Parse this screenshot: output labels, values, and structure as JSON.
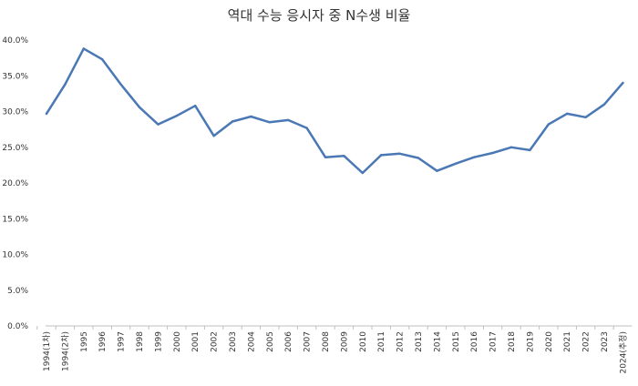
{
  "chart_data": {
    "type": "line",
    "title": "역대 수능 응시자 중 N수생 비율",
    "xlabel": "",
    "ylabel": "",
    "ylim": [
      0,
      40
    ],
    "ytick_labels": [
      "0.0%",
      "5.0%",
      "10.0%",
      "15.0%",
      "20.0%",
      "25.0%",
      "30.0%",
      "35.0%",
      "40.0%"
    ],
    "grid": false,
    "line_color": "#4a78b5",
    "categories": [
      "1994(1차)",
      "1994(2차)",
      "1995",
      "1996",
      "1997",
      "1998",
      "1999",
      "2000",
      "2001",
      "2002",
      "2003",
      "2004",
      "2005",
      "2006",
      "2007",
      "2008",
      "2009",
      "2010",
      "2011",
      "2012",
      "2013",
      "2014",
      "2015",
      "2016",
      "2017",
      "2018",
      "2019",
      "2020",
      "2021",
      "2022",
      "2023",
      "2024(추정)"
    ],
    "values": [
      29.7,
      33.8,
      38.8,
      37.3,
      33.8,
      30.6,
      28.2,
      29.4,
      30.8,
      26.6,
      28.6,
      29.3,
      28.5,
      28.8,
      27.7,
      23.6,
      23.8,
      21.4,
      23.9,
      24.1,
      23.5,
      21.7,
      22.7,
      23.6,
      24.2,
      25.0,
      24.6,
      28.2,
      29.7,
      29.2,
      31.0,
      34.0
    ]
  }
}
